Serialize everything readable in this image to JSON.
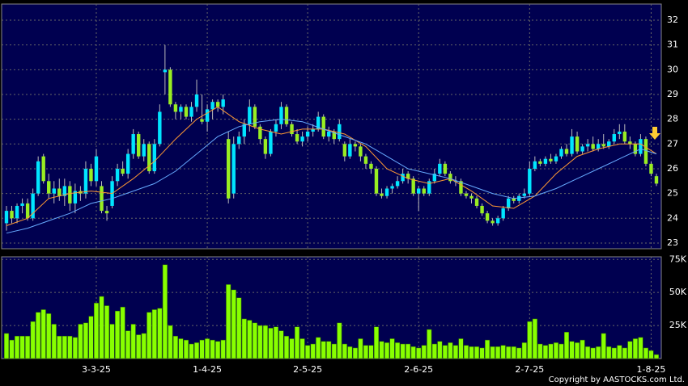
{
  "chart_data": {
    "type": "candlestick",
    "categories": [
      null,
      null,
      null,
      null,
      null,
      null,
      null,
      null,
      null,
      null,
      null,
      null,
      null,
      null,
      null,
      null,
      null,
      "3-3-25",
      null,
      null,
      null,
      null,
      null,
      null,
      null,
      null,
      null,
      null,
      null,
      null,
      null,
      null,
      null,
      null,
      null,
      null,
      null,
      null,
      "1-4-25",
      null,
      null,
      null,
      null,
      null,
      null,
      null,
      null,
      null,
      null,
      null,
      null,
      null,
      null,
      null,
      null,
      null,
      null,
      "2-5-25",
      null,
      null,
      null,
      null,
      null,
      null,
      null,
      null,
      null,
      null,
      null,
      null,
      null,
      null,
      null,
      null,
      null,
      null,
      null,
      null,
      "2-6-25",
      null,
      null,
      null,
      null,
      null,
      null,
      null,
      null,
      null,
      null,
      null,
      null,
      null,
      null,
      null,
      null,
      null,
      null,
      null,
      null,
      "2-7-25",
      null,
      null,
      null,
      null,
      null,
      null,
      null,
      null,
      null,
      null,
      null,
      null,
      null,
      null,
      null,
      null,
      null,
      null,
      null,
      null,
      null,
      null,
      "1-8-25",
      null
    ],
    "ohlc": [
      [
        23.8,
        24.5,
        23.5,
        24.3
      ],
      [
        24.3,
        24.5,
        23.8,
        24.0
      ],
      [
        24.0,
        24.6,
        23.8,
        24.5
      ],
      [
        24.5,
        24.8,
        24.2,
        24.6
      ],
      [
        24.6,
        24.8,
        23.9,
        24.0
      ],
      [
        24.0,
        25.2,
        23.9,
        25.0
      ],
      [
        25.0,
        26.5,
        24.9,
        26.3
      ],
      [
        26.5,
        26.6,
        25.4,
        25.5
      ],
      [
        25.5,
        25.8,
        24.8,
        25.0
      ],
      [
        25.0,
        25.5,
        24.6,
        25.2
      ],
      [
        25.2,
        25.6,
        24.7,
        24.9
      ],
      [
        24.9,
        25.6,
        24.5,
        25.3
      ],
      [
        25.3,
        25.5,
        24.3,
        24.6
      ],
      [
        24.6,
        25.4,
        24.2,
        25.1
      ],
      [
        25.1,
        25.3,
        24.7,
        25.0
      ],
      [
        25.0,
        26.3,
        24.8,
        26.0
      ],
      [
        26.0,
        26.2,
        25.3,
        25.5
      ],
      [
        25.5,
        26.8,
        25.3,
        26.5
      ],
      [
        25.3,
        25.5,
        24.2,
        24.3
      ],
      [
        24.3,
        24.5,
        23.9,
        24.2
      ],
      [
        24.5,
        25.7,
        24.4,
        25.5
      ],
      [
        25.5,
        26.2,
        25.3,
        26.0
      ],
      [
        26.0,
        26.3,
        25.7,
        25.8
      ],
      [
        25.8,
        26.8,
        25.6,
        26.6
      ],
      [
        26.6,
        27.6,
        26.4,
        27.4
      ],
      [
        27.4,
        27.5,
        26.4,
        26.5
      ],
      [
        26.5,
        27.2,
        26.3,
        27.0
      ],
      [
        27.0,
        27.1,
        25.8,
        25.9
      ],
      [
        25.9,
        27.2,
        25.8,
        27.0
      ],
      [
        27.0,
        28.6,
        26.9,
        28.3
      ],
      [
        29.9,
        31.0,
        29.0,
        30.0
      ],
      [
        30.0,
        30.1,
        28.5,
        28.6
      ],
      [
        28.6,
        28.7,
        28.0,
        28.3
      ],
      [
        28.3,
        28.6,
        28.0,
        28.5
      ],
      [
        28.5,
        28.6,
        28.0,
        28.1
      ],
      [
        28.1,
        28.7,
        27.9,
        28.5
      ],
      [
        28.5,
        29.6,
        28.3,
        29.0
      ],
      [
        28.0,
        29.0,
        27.8,
        27.9
      ],
      [
        27.9,
        28.6,
        27.5,
        28.4
      ],
      [
        28.4,
        28.8,
        28.0,
        28.7
      ],
      [
        28.7,
        28.8,
        28.3,
        28.5
      ],
      [
        28.5,
        29.0,
        28.2,
        28.8
      ],
      [
        27.2,
        27.5,
        24.6,
        24.8
      ],
      [
        25.0,
        27.3,
        24.8,
        27.0
      ],
      [
        27.0,
        27.5,
        26.8,
        27.3
      ],
      [
        27.3,
        28.0,
        27.0,
        27.8
      ],
      [
        27.8,
        28.8,
        27.5,
        28.5
      ],
      [
        28.5,
        28.6,
        27.6,
        27.7
      ],
      [
        27.7,
        27.8,
        27.0,
        27.2
      ],
      [
        27.2,
        27.3,
        26.4,
        26.6
      ],
      [
        26.6,
        27.6,
        26.5,
        27.5
      ],
      [
        27.5,
        28.0,
        27.3,
        27.8
      ],
      [
        27.8,
        28.7,
        27.6,
        28.5
      ],
      [
        28.5,
        28.6,
        27.7,
        27.8
      ],
      [
        27.8,
        27.9,
        27.3,
        27.4
      ],
      [
        27.4,
        27.6,
        27.0,
        27.1
      ],
      [
        27.1,
        27.5,
        26.9,
        27.3
      ],
      [
        27.3,
        27.7,
        27.1,
        27.5
      ],
      [
        27.5,
        27.8,
        27.3,
        27.6
      ],
      [
        27.6,
        28.3,
        27.5,
        28.1
      ],
      [
        28.1,
        28.2,
        27.2,
        27.3
      ],
      [
        27.3,
        27.7,
        27.1,
        27.5
      ],
      [
        27.5,
        27.6,
        27.0,
        27.2
      ],
      [
        27.2,
        28.0,
        27.1,
        27.8
      ],
      [
        27.0,
        27.1,
        26.3,
        26.5
      ],
      [
        26.5,
        27.2,
        26.4,
        27.0
      ],
      [
        27.0,
        27.1,
        26.7,
        26.9
      ],
      [
        26.9,
        27.0,
        26.3,
        26.5
      ],
      [
        26.5,
        26.6,
        26.0,
        26.2
      ],
      [
        26.2,
        26.3,
        25.8,
        26.0
      ],
      [
        26.0,
        26.1,
        24.9,
        25.0
      ],
      [
        25.0,
        25.2,
        24.8,
        24.9
      ],
      [
        24.9,
        25.3,
        24.8,
        25.2
      ],
      [
        25.2,
        25.4,
        25.0,
        25.3
      ],
      [
        25.3,
        25.7,
        25.2,
        25.5
      ],
      [
        25.5,
        26.0,
        25.4,
        25.8
      ],
      [
        25.8,
        25.9,
        25.4,
        25.6
      ],
      [
        25.6,
        25.7,
        24.9,
        25.0
      ],
      [
        25.0,
        25.3,
        24.3,
        25.2
      ],
      [
        25.2,
        25.3,
        24.9,
        25.0
      ],
      [
        25.0,
        25.6,
        24.9,
        25.5
      ],
      [
        25.5,
        26.0,
        25.4,
        25.8
      ],
      [
        25.8,
        26.4,
        25.7,
        26.2
      ],
      [
        26.2,
        26.3,
        25.7,
        25.8
      ],
      [
        25.8,
        25.9,
        25.4,
        25.5
      ],
      [
        25.5,
        25.7,
        25.3,
        25.5
      ],
      [
        25.5,
        25.6,
        24.9,
        25.0
      ],
      [
        25.0,
        25.1,
        24.8,
        24.9
      ],
      [
        24.9,
        25.0,
        24.6,
        24.8
      ],
      [
        24.8,
        24.9,
        24.4,
        24.5
      ],
      [
        24.5,
        24.6,
        24.1,
        24.2
      ],
      [
        24.2,
        24.3,
        23.8,
        23.9
      ],
      [
        23.9,
        24.0,
        23.7,
        23.8
      ],
      [
        23.8,
        24.1,
        23.7,
        24.0
      ],
      [
        24.0,
        24.5,
        23.9,
        24.4
      ],
      [
        24.4,
        24.9,
        24.3,
        24.8
      ],
      [
        24.8,
        24.9,
        24.6,
        24.7
      ],
      [
        24.7,
        25.0,
        24.6,
        24.9
      ],
      [
        24.9,
        25.2,
        24.8,
        25.0
      ],
      [
        25.0,
        26.3,
        24.9,
        26.0
      ],
      [
        26.0,
        26.5,
        25.9,
        26.3
      ],
      [
        26.3,
        26.4,
        26.1,
        26.2
      ],
      [
        26.2,
        26.5,
        26.1,
        26.4
      ],
      [
        26.4,
        26.6,
        26.2,
        26.3
      ],
      [
        26.3,
        26.6,
        26.2,
        26.5
      ],
      [
        26.5,
        26.9,
        26.4,
        26.8
      ],
      [
        26.8,
        27.0,
        26.5,
        26.6
      ],
      [
        26.6,
        27.6,
        26.5,
        27.3
      ],
      [
        27.3,
        27.5,
        26.6,
        26.7
      ],
      [
        26.7,
        27.0,
        26.6,
        26.9
      ],
      [
        26.9,
        27.2,
        26.7,
        27.0
      ],
      [
        27.0,
        27.3,
        26.7,
        26.8
      ],
      [
        26.8,
        27.2,
        26.7,
        27.0
      ],
      [
        27.0,
        27.4,
        26.8,
        26.9
      ],
      [
        26.9,
        27.2,
        26.8,
        27.1
      ],
      [
        27.1,
        27.6,
        27.0,
        27.4
      ],
      [
        27.4,
        27.8,
        27.2,
        27.5
      ],
      [
        27.5,
        27.8,
        27.0,
        27.1
      ],
      [
        27.1,
        27.3,
        26.8,
        27.0
      ],
      [
        27.0,
        27.1,
        26.5,
        26.6
      ],
      [
        26.6,
        27.4,
        26.5,
        27.2
      ],
      [
        27.2,
        27.3,
        26.1,
        26.2
      ],
      [
        26.2,
        26.3,
        25.7,
        25.8
      ],
      [
        25.7,
        25.8,
        25.3,
        25.4
      ]
    ],
    "up_color": "#00e5ff",
    "down_color": "#99ee22",
    "lines": [
      {
        "color": "#ff9933",
        "x": [
          0,
          4,
          8,
          12,
          16,
          20,
          24,
          28,
          32,
          36,
          40,
          44,
          48,
          52,
          56,
          60,
          64,
          68,
          72,
          76,
          80,
          84,
          88,
          92,
          96,
          100,
          104,
          108,
          112,
          116,
          120,
          123
        ],
        "values": [
          23.7,
          24.0,
          24.8,
          25.0,
          25.1,
          25.0,
          25.6,
          26.3,
          27.2,
          28.0,
          28.5,
          27.9,
          27.6,
          27.4,
          27.6,
          27.6,
          27.4,
          26.9,
          26.0,
          25.6,
          25.4,
          25.6,
          25.1,
          24.5,
          24.4,
          24.9,
          25.8,
          26.5,
          26.8,
          27.0,
          27.0,
          26.6
        ]
      },
      {
        "color": "#66aaff",
        "x": [
          0,
          4,
          8,
          12,
          16,
          20,
          24,
          28,
          32,
          36,
          40,
          44,
          48,
          52,
          56,
          60,
          64,
          68,
          72,
          76,
          80,
          84,
          88,
          92,
          96,
          100,
          104,
          108,
          112,
          116,
          120,
          123
        ],
        "values": [
          23.4,
          23.6,
          23.9,
          24.2,
          24.6,
          24.8,
          25.1,
          25.4,
          25.9,
          26.6,
          27.3,
          27.7,
          27.9,
          28.0,
          27.9,
          27.6,
          27.3,
          27.0,
          26.5,
          26.0,
          25.8,
          25.6,
          25.3,
          25.0,
          24.8,
          24.9,
          25.2,
          25.6,
          26.0,
          26.4,
          26.8,
          26.6
        ]
      }
    ],
    "ylim": [
      22.77,
      32.62
    ],
    "yticks": [
      23,
      24,
      25,
      26,
      27,
      28,
      29,
      30,
      31,
      32
    ],
    "grid": true,
    "volume": {
      "color": "#88ff00",
      "values": [
        19000,
        14000,
        17000,
        17000,
        17000,
        28000,
        35000,
        37000,
        34000,
        26000,
        17000,
        17000,
        17000,
        16000,
        26000,
        27000,
        32000,
        42000,
        47000,
        40000,
        26000,
        36000,
        39000,
        21000,
        26000,
        18000,
        19000,
        35000,
        37000,
        38000,
        71000,
        25000,
        17000,
        15000,
        14000,
        11000,
        12000,
        14000,
        15000,
        14000,
        13000,
        14000,
        56000,
        52000,
        46000,
        30000,
        29000,
        27000,
        25000,
        25000,
        23000,
        24000,
        21000,
        17000,
        15000,
        24000,
        15000,
        10000,
        11000,
        16000,
        13000,
        13000,
        11000,
        27000,
        11000,
        9000,
        8000,
        15000,
        10000,
        10000,
        24000,
        13000,
        12000,
        15000,
        12000,
        11000,
        11000,
        9000,
        8000,
        10000,
        22000,
        11000,
        13000,
        10000,
        12000,
        10000,
        15000,
        10000,
        9000,
        9000,
        8000,
        14000,
        9000,
        9000,
        10000,
        9000,
        9000,
        8000,
        12000,
        28000,
        30000,
        11000,
        10000,
        11000,
        12000,
        11000,
        20000,
        13000,
        12000,
        14000,
        9000,
        8000,
        9000,
        19000,
        9000,
        8000,
        10000,
        8000,
        13000,
        15000,
        16000,
        8000,
        6000,
        3000
      ],
      "ylim": [
        0,
        77000
      ],
      "yticks": [
        {
          "value": 25000,
          "label": "25K"
        },
        {
          "value": 50000,
          "label": "50K"
        },
        {
          "value": 75000,
          "label": "75K"
        }
      ]
    }
  },
  "footer": "Copyright by AASTOCKS.com Ltd."
}
